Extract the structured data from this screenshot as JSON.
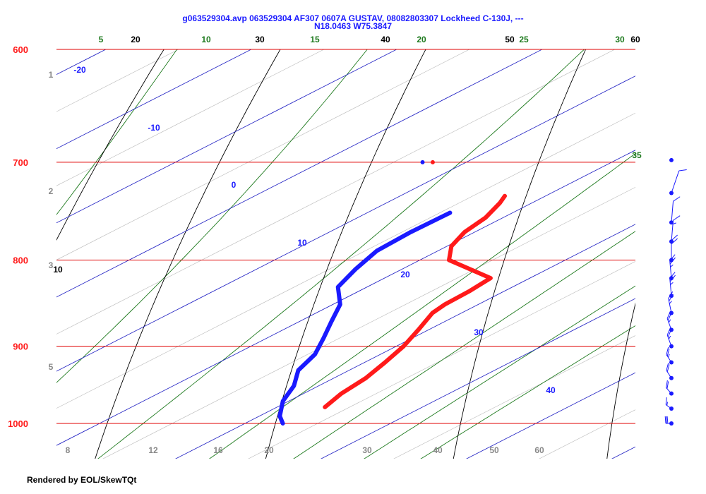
{
  "chart_data": {
    "type": "skew-t log-p diagram",
    "title_line1": "g063529304.avp 063529304 AF307 0607A GUSTAV, 08082803307 Lockheed C-130J, ---",
    "title_line2": "N18.0463 W75.3847",
    "pressure_levels": [
      {
        "p": 600,
        "label": "600"
      },
      {
        "p": 700,
        "label": "700"
      },
      {
        "p": 800,
        "label": "800"
      },
      {
        "p": 900,
        "label": "900"
      },
      {
        "p": 1000,
        "label": "1000"
      }
    ],
    "isotherm_labels": [
      {
        "t": -20,
        "label": "-20"
      },
      {
        "t": -10,
        "label": "-10"
      },
      {
        "t": 0,
        "label": "0"
      },
      {
        "t": 10,
        "label": "10"
      },
      {
        "t": 20,
        "label": "20"
      },
      {
        "t": 30,
        "label": "30"
      },
      {
        "t": 40,
        "label": "40"
      }
    ],
    "dry_adiabat_labels": [
      {
        "label": "20",
        "t600": -28
      },
      {
        "label": "30",
        "t600": -18
      },
      {
        "label": "40",
        "t600": -7
      },
      {
        "label": "50",
        "t600": 2
      },
      {
        "label": "60",
        "t600": 10
      },
      {
        "label": "10",
        "t800": 0
      }
    ],
    "moist_adiabat_labels": [
      {
        "label": "5"
      },
      {
        "label": "10"
      },
      {
        "label": "15"
      },
      {
        "label": "20"
      },
      {
        "label": "25"
      },
      {
        "label": "30"
      },
      {
        "label": "35"
      }
    ],
    "mixing_ratio_top_labels": [
      {
        "label": "1"
      },
      {
        "label": "2"
      },
      {
        "label": "3"
      },
      {
        "label": "5"
      }
    ],
    "mixing_ratio_bottom_labels": [
      {
        "label": "8"
      },
      {
        "label": "12"
      },
      {
        "label": "16"
      },
      {
        "label": "20"
      },
      {
        "label": "30"
      },
      {
        "label": "40"
      },
      {
        "label": "50"
      },
      {
        "label": "60"
      }
    ],
    "temperature_profile": [
      [
        733,
        7.2
      ],
      [
        740,
        7.8
      ],
      [
        755,
        8.8
      ],
      [
        770,
        9.3
      ],
      [
        785,
        10.3
      ],
      [
        800,
        12.0
      ],
      [
        820,
        17.3
      ],
      [
        835,
        17.6
      ],
      [
        850,
        17.7
      ],
      [
        860,
        18.0
      ],
      [
        880,
        19.3
      ],
      [
        900,
        20.5
      ],
      [
        920,
        21.4
      ],
      [
        940,
        22.2
      ],
      [
        960,
        22.6
      ],
      [
        978,
        23.3
      ]
    ],
    "dewpoint_profile": [
      [
        750,
        5.7
      ],
      [
        770,
        5.6
      ],
      [
        790,
        5.8
      ],
      [
        810,
        6.8
      ],
      [
        830,
        8.0
      ],
      [
        850,
        10.5
      ],
      [
        870,
        12.2
      ],
      [
        890,
        13.9
      ],
      [
        910,
        15.5
      ],
      [
        930,
        16.5
      ],
      [
        950,
        18.3
      ],
      [
        970,
        19.6
      ],
      [
        990,
        21.4
      ],
      [
        1000,
        22.6
      ]
    ],
    "isolated_points": [
      {
        "p": 700,
        "t": -3.0,
        "color": "#1a1aff"
      },
      {
        "p": 700,
        "t": -2.3,
        "color": "#ff1a1a"
      }
    ],
    "wind_barbs": [
      {
        "p": 700,
        "dir": 0,
        "speed": 0
      },
      {
        "p": 730,
        "dir": 10,
        "speed": 10
      },
      {
        "p": 760,
        "dir": 340,
        "speed": 10
      },
      {
        "p": 780,
        "dir": 340,
        "speed": 15
      },
      {
        "p": 800,
        "dir": 330,
        "speed": 20
      },
      {
        "p": 820,
        "dir": 320,
        "speed": 25
      },
      {
        "p": 840,
        "dir": 320,
        "speed": 25
      },
      {
        "p": 860,
        "dir": 310,
        "speed": 25
      },
      {
        "p": 880,
        "dir": 300,
        "speed": 25
      },
      {
        "p": 900,
        "dir": 300,
        "speed": 25
      },
      {
        "p": 920,
        "dir": 290,
        "speed": 25
      },
      {
        "p": 940,
        "dir": 290,
        "speed": 20
      },
      {
        "p": 960,
        "dir": 285,
        "speed": 20
      },
      {
        "p": 980,
        "dir": 280,
        "speed": 15
      },
      {
        "p": 1000,
        "dir": 270,
        "speed": 30
      }
    ],
    "colors": {
      "isobar": "#e00000",
      "isotherm": "#2020c8",
      "dry_adiabat": "#000000",
      "moist_adiabat": "#1e7a1e",
      "mixing_ratio": "#888888",
      "temperature": "#ff1a1a",
      "dewpoint": "#1a1aff",
      "wind": "#1a1aff"
    }
  },
  "footer": "Rendered by EOL/SkewTQt"
}
